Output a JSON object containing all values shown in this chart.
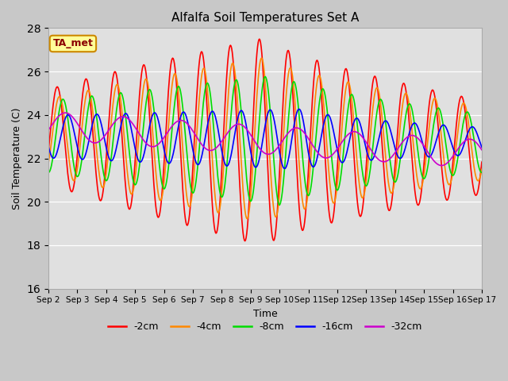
{
  "title": "Alfalfa Soil Temperatures Set A",
  "xlabel": "Time",
  "ylabel": "Soil Temperature (C)",
  "ylim": [
    16,
    28
  ],
  "fig_bg_color": "#c8c8c8",
  "plot_bg_color": "#e0e0e0",
  "annotation_text": "TA_met",
  "annotation_bg": "#ffff99",
  "annotation_border": "#cc8800",
  "legend_entries": [
    "-2cm",
    "-4cm",
    "-8cm",
    "-16cm",
    "-32cm"
  ],
  "line_colors": [
    "#ff0000",
    "#ff8800",
    "#00dd00",
    "#0000ff",
    "#cc00cc"
  ],
  "line_widths": [
    1.2,
    1.2,
    1.2,
    1.2,
    1.2
  ],
  "tick_labels": [
    "Sep 2",
    "Sep 3",
    "Sep 4",
    "Sep 5",
    "Sep 6",
    "Sep 7",
    "Sep 8",
    "Sep 9",
    "Sep 10",
    "Sep 11",
    "Sep 12",
    "Sep 13",
    "Sep 14",
    "Sep 15",
    "Sep 16",
    "Sep 17"
  ],
  "n_days": 15,
  "pts_per_day": 48,
  "base_temp": 23.0,
  "ytick_labels": [
    "16",
    "18",
    "20",
    "22",
    "24",
    "26",
    "28"
  ]
}
